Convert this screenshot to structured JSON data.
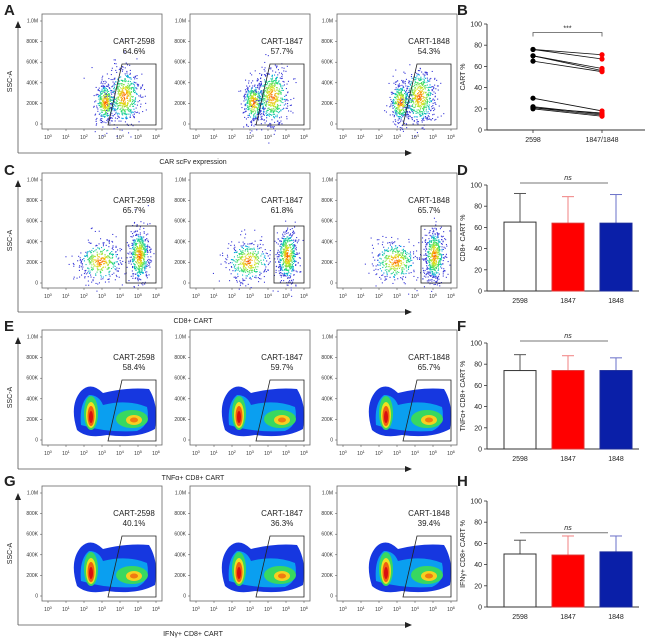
{
  "panel_labels": [
    "A",
    "B",
    "C",
    "D",
    "E",
    "F",
    "G",
    "H"
  ],
  "flow_rows": [
    {
      "label": "A",
      "xlabel": "CAR scFv expression",
      "ylabel": "SSC-A",
      "style": "dot",
      "gate": "slanted",
      "samples": [
        {
          "name": "CART-2598",
          "pct": "64.6%"
        },
        {
          "name": "CART-1847",
          "pct": "57.7%"
        },
        {
          "name": "CART-1848",
          "pct": "54.3%"
        }
      ]
    },
    {
      "label": "C",
      "xlabel": "CD8+ CART",
      "ylabel": "SSC-A",
      "style": "dot",
      "gate": "rect",
      "samples": [
        {
          "name": "CART-2598",
          "pct": "65.7%"
        },
        {
          "name": "CART-1847",
          "pct": "61.8%"
        },
        {
          "name": "CART-1848",
          "pct": "65.7%"
        }
      ]
    },
    {
      "label": "E",
      "xlabel": "TNFα+ CD8+ CART",
      "ylabel": "SSC-A",
      "style": "density",
      "gate": "slanted",
      "samples": [
        {
          "name": "CART-2598",
          "pct": "58.4%"
        },
        {
          "name": "CART-1847",
          "pct": "59.7%"
        },
        {
          "name": "CART-1848",
          "pct": "65.7%"
        }
      ]
    },
    {
      "label": "G",
      "xlabel": "IFNγ+ CD8+ CART",
      "ylabel": "SSC-A",
      "style": "density",
      "gate": "slanted",
      "samples": [
        {
          "name": "CART-2598",
          "pct": "40.1%"
        },
        {
          "name": "CART-1847",
          "pct": "36.3%"
        },
        {
          "name": "CART-1848",
          "pct": "39.4%"
        }
      ]
    }
  ],
  "flow_axes": {
    "y_ticks": [
      "0",
      "200K",
      "400K",
      "600K",
      "800K",
      "1.0M"
    ],
    "x_ticks": [
      "10^0",
      "10^1",
      "10^2",
      "10^3",
      "10^4",
      "10^5",
      "10^6"
    ]
  },
  "chart_data": [
    {
      "type": "line",
      "panel": "B",
      "title": "",
      "xlabel": "",
      "ylabel": "CART %",
      "categories": [
        "2598",
        "1847/1848"
      ],
      "ylim": [
        0,
        100
      ],
      "yticks": [
        0,
        20,
        40,
        60,
        80,
        100
      ],
      "significance": "***",
      "pairs": [
        [
          76,
          71
        ],
        [
          76,
          67
        ],
        [
          70,
          58
        ],
        [
          70,
          56
        ],
        [
          65,
          55
        ],
        [
          30,
          18
        ],
        [
          22,
          15
        ],
        [
          21,
          14
        ],
        [
          20,
          13
        ],
        [
          21,
          16
        ]
      ],
      "colors": {
        "before": "#000000",
        "after": "#ff0000"
      }
    },
    {
      "type": "bar",
      "panel": "D",
      "xlabel": "",
      "ylabel": "CD8+ CART %",
      "categories": [
        "2598",
        "1847",
        "1848"
      ],
      "values": [
        65,
        64,
        64
      ],
      "errors": [
        27,
        25,
        27
      ],
      "ylim": [
        0,
        100
      ],
      "yticks": [
        0,
        20,
        40,
        60,
        80,
        100
      ],
      "significance": "ns",
      "colors": [
        "#ffffff",
        "#ff0000",
        "#0a1fa8"
      ]
    },
    {
      "type": "bar",
      "panel": "F",
      "xlabel": "",
      "ylabel": "TNFα+ CD8+ CART %",
      "categories": [
        "2598",
        "1847",
        "1848"
      ],
      "values": [
        74,
        74,
        74
      ],
      "errors": [
        15,
        14,
        12
      ],
      "ylim": [
        0,
        100
      ],
      "yticks": [
        0,
        20,
        40,
        60,
        80,
        100
      ],
      "significance": "ns",
      "colors": [
        "#ffffff",
        "#ff0000",
        "#0a1fa8"
      ]
    },
    {
      "type": "bar",
      "panel": "H",
      "xlabel": "",
      "ylabel": "IFNγ+ CD8+ CART %",
      "categories": [
        "2598",
        "1847",
        "1848"
      ],
      "values": [
        50,
        49,
        52
      ],
      "errors": [
        13,
        18,
        15
      ],
      "ylim": [
        0,
        100
      ],
      "yticks": [
        0,
        20,
        40,
        60,
        80,
        100
      ],
      "significance": "ns",
      "colors": [
        "#ffffff",
        "#ff0000",
        "#0a1fa8"
      ]
    }
  ]
}
